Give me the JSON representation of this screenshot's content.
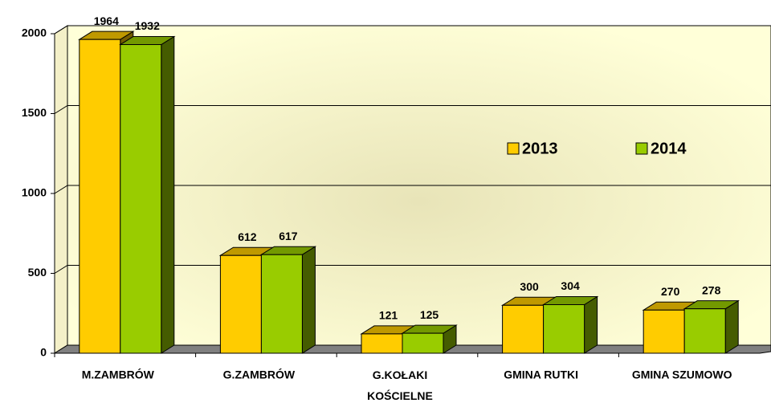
{
  "chart_data": {
    "type": "bar3d",
    "categories": [
      "M.ZAMBRÓW",
      "G.ZAMBRÓW",
      "G.KOŁAKI KOŚCIELNE",
      "GMINA RUTKI",
      "GMINA SZUMOWO"
    ],
    "series": [
      {
        "name": "2013",
        "color": "#ffcc00",
        "values": [
          1964,
          612,
          121,
          300,
          270
        ]
      },
      {
        "name": "2014",
        "color": "#99cc00",
        "values": [
          1932,
          617,
          125,
          304,
          278
        ]
      }
    ],
    "ylim": [
      0,
      2000
    ],
    "yticks": [
      0,
      500,
      1000,
      1500,
      2000
    ],
    "grid": true,
    "legend": "right"
  }
}
